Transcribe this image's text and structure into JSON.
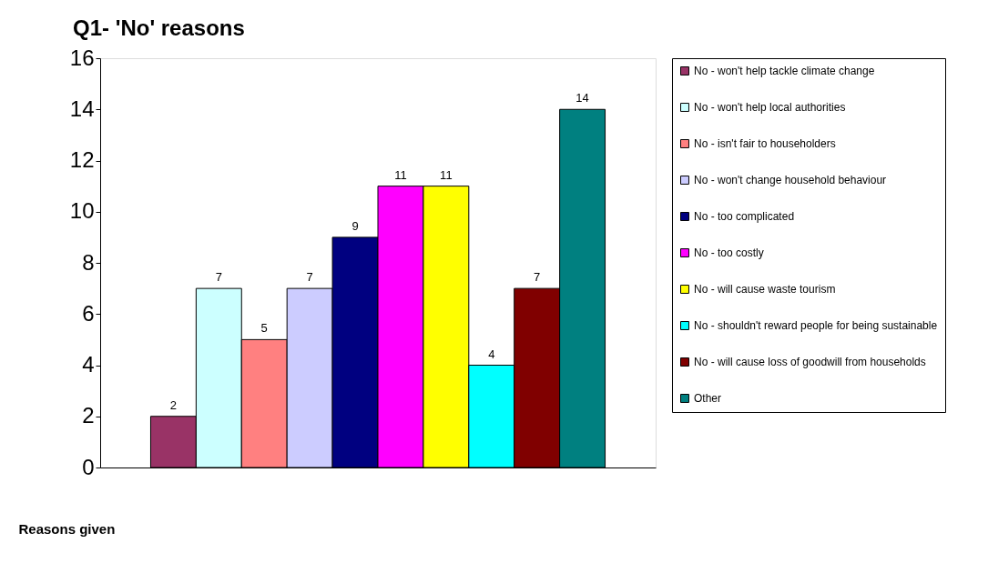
{
  "chart_data": {
    "type": "bar",
    "title": "Q1- 'No' reasons",
    "xlabel": "Reasons given",
    "categories": [
      null
    ],
    "series": [
      {
        "name": "No - won't help tackle climate change",
        "color": "#993366",
        "values": [
          2
        ]
      },
      {
        "name": "No - won't help local authorities",
        "color": "#ccffff",
        "values": [
          7
        ]
      },
      {
        "name": "No - isn't fair to householders",
        "color": "#ff8080",
        "values": [
          5
        ]
      },
      {
        "name": "No - won't change household behaviour",
        "color": "#ccccff",
        "values": [
          7
        ]
      },
      {
        "name": "No - too complicated",
        "color": "#000080",
        "values": [
          9
        ]
      },
      {
        "name": "No - too costly",
        "color": "#ff00ff",
        "values": [
          11
        ]
      },
      {
        "name": "No - will cause waste tourism",
        "color": "#ffff00",
        "values": [
          11
        ]
      },
      {
        "name": "No - shouldn't reward people for being sustainable",
        "color": "#00ffff",
        "values": [
          4
        ]
      },
      {
        "name": "No - will cause loss of goodwill from households",
        "color": "#800000",
        "values": [
          7
        ]
      },
      {
        "name": "Other",
        "color": "#008080",
        "values": [
          14
        ]
      }
    ],
    "ylim": [
      0,
      16
    ],
    "yticks": [
      0,
      2,
      4,
      6,
      8,
      10,
      12,
      14,
      16
    ],
    "data_labels": true,
    "legend": "right",
    "grid": false
  }
}
